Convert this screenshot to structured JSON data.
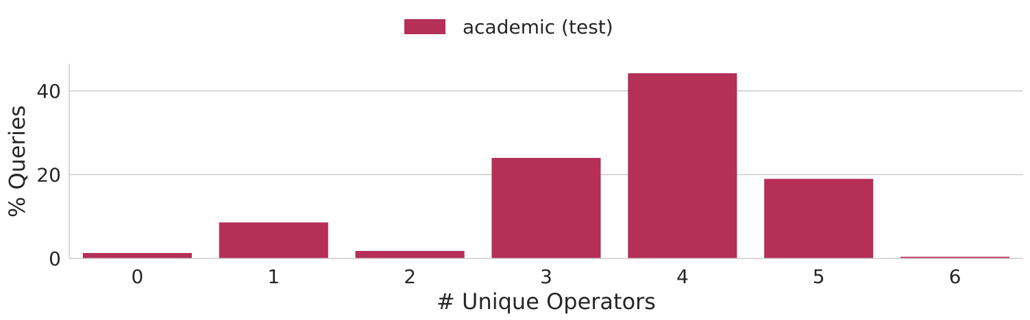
{
  "chart_data": {
    "type": "bar",
    "title": "",
    "xlabel": "# Unique Operators",
    "ylabel": "% Queries",
    "categories": [
      "0",
      "1",
      "2",
      "3",
      "4",
      "5",
      "6"
    ],
    "series": [
      {
        "name": "academic (test)",
        "color": "#b52f57",
        "values": [
          1.3,
          8.6,
          1.8,
          24.0,
          44.2,
          19.0,
          0.4
        ]
      }
    ],
    "ylim": [
      0,
      46.5
    ],
    "yticks": [
      0,
      20,
      40
    ],
    "grid": "horizontal",
    "legend_position": "top-center"
  }
}
